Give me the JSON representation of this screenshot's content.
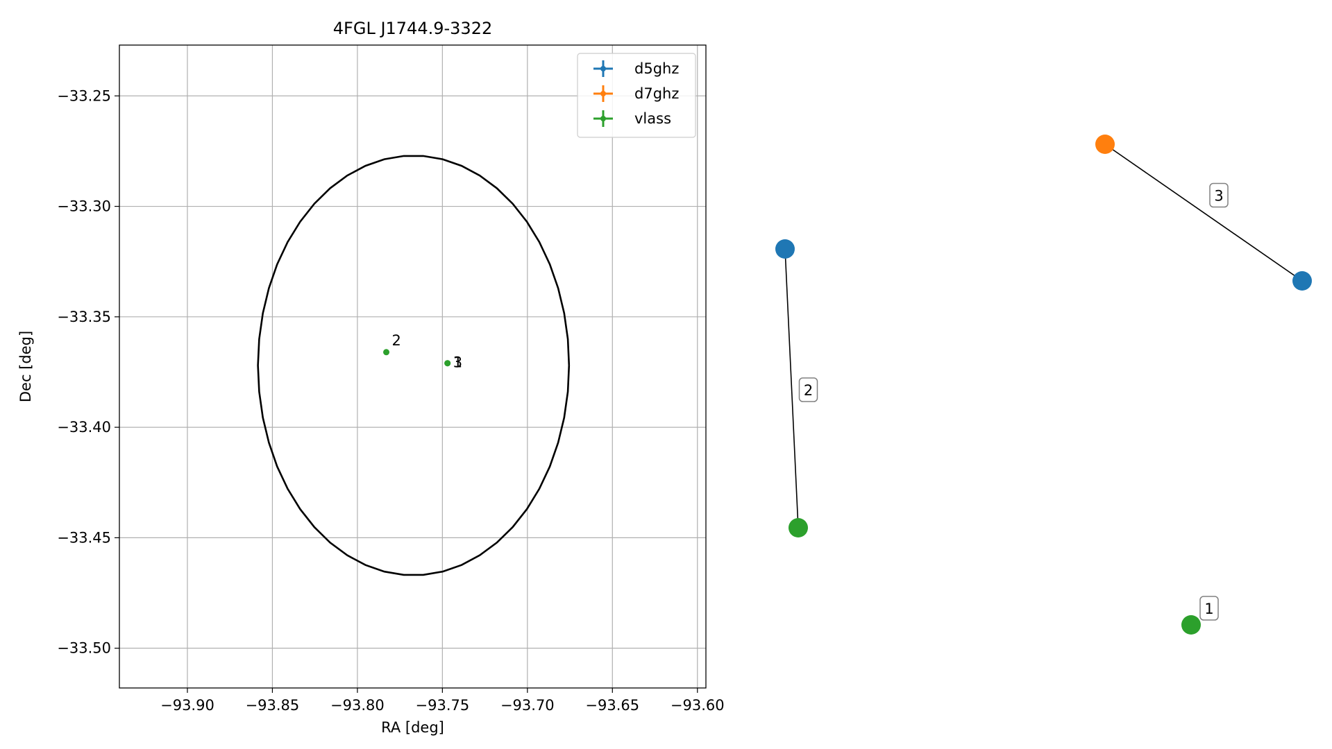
{
  "chart_data": [
    {
      "type": "scatter",
      "title": "4FGL J1744.9-3322",
      "xlabel": "RA [deg]",
      "ylabel": "Dec [deg]",
      "xlim": [
        -93.94,
        -93.595
      ],
      "ylim": [
        -33.518,
        -33.227
      ],
      "xticks": [
        -93.9,
        -93.85,
        -93.8,
        -93.75,
        -93.7,
        -93.65,
        -93.6
      ],
      "xtick_labels": [
        "−93.90",
        "−93.85",
        "−93.80",
        "−93.75",
        "−93.70",
        "−93.65",
        "−93.60"
      ],
      "yticks": [
        -33.25,
        -33.3,
        -33.35,
        -33.4,
        -33.45,
        -33.5
      ],
      "ytick_labels": [
        "−33.25",
        "−33.30",
        "−33.35",
        "−33.40",
        "−33.45",
        "−33.50"
      ],
      "grid": true,
      "legend_position": "top-right",
      "series": [
        {
          "name": "d5ghz",
          "color": "#1f77b4",
          "points": []
        },
        {
          "name": "d7ghz",
          "color": "#ff7f0e",
          "points": []
        },
        {
          "name": "vlass",
          "color": "#2ca02c",
          "points": [
            {
              "x": -93.747,
              "y": -33.371,
              "label": "1"
            },
            {
              "x": -93.783,
              "y": -33.366,
              "label": "2"
            },
            {
              "x": -93.747,
              "y": -33.371,
              "label": "3"
            }
          ]
        }
      ],
      "ellipse": {
        "center": [
          -93.767,
          -33.372
        ],
        "ra_halfwidth": 0.0915,
        "dec_halfheight": 0.095,
        "color": "#000000"
      }
    },
    {
      "type": "diagram",
      "nodes": [
        {
          "id": "n2a",
          "color": "#1f77b4"
        },
        {
          "id": "n2b",
          "color": "#2ca02c"
        },
        {
          "id": "n3a",
          "color": "#ff7f0e"
        },
        {
          "id": "n3b",
          "color": "#1f77b4"
        },
        {
          "id": "n1",
          "color": "#2ca02c"
        }
      ],
      "edges": [
        {
          "from": "n2a",
          "to": "n2b",
          "label": "2"
        },
        {
          "from": "n3a",
          "to": "n3b",
          "label": "3"
        }
      ],
      "node_labels": [
        {
          "node": "n1",
          "label": "1"
        }
      ]
    }
  ]
}
